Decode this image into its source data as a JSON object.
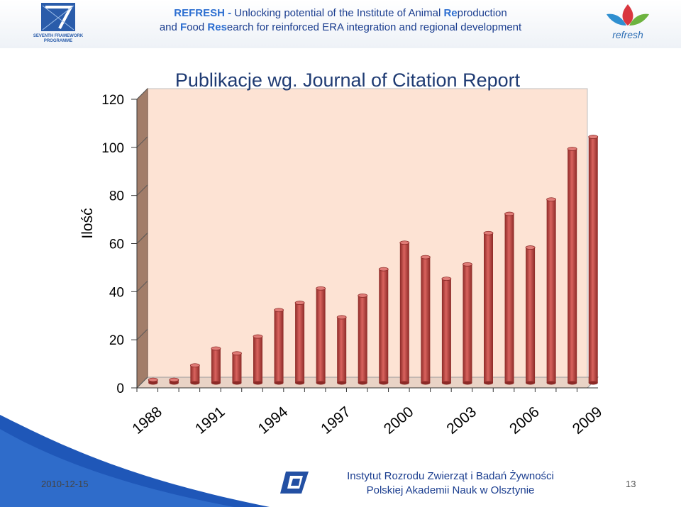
{
  "header": {
    "line1_a": "REFRESH - ",
    "line1_b": "Unlocking potential of the Institute of Animal ",
    "line1_c": "Re",
    "line1_d": "production",
    "line2_a": "and ",
    "line2_b": "F",
    "line2_c": "ood ",
    "line2_d": "Res",
    "line2_e": "earch for reinforced ERA integration and regional development",
    "fp7_logo_text1": "SEVENTH FRAMEWORK",
    "fp7_logo_text2": "PROGRAMME",
    "refresh_logo_text": "refresh"
  },
  "footer": {
    "date": "2010-12-15",
    "institute_line1": "Instytut Rozrodu Zwierząt i Badań Żywności",
    "institute_line2": "Polskiej Akademii Nauk w Olsztynie",
    "page_number": "13"
  },
  "colors": {
    "bar": "#c0504d",
    "bar_dark": "#8c2a27",
    "plot_bg": "#fde3d4",
    "side_wall": "#a27d69",
    "title": "#1f3b73"
  },
  "chart_data": {
    "type": "bar",
    "title": "Publikacje wg. Journal of Citation Report",
    "ylabel": "Ilość",
    "xlabel": "",
    "ylim": [
      0,
      120
    ],
    "yticks": [
      0,
      20,
      40,
      60,
      80,
      100,
      120
    ],
    "categories": [
      "1988",
      "1989",
      "1990",
      "1991",
      "1992",
      "1993",
      "1994",
      "1995",
      "1996",
      "1997",
      "1998",
      "1999",
      "2000",
      "2001",
      "2002",
      "2003",
      "2004",
      "2005",
      "2006",
      "2007",
      "2008",
      "2009"
    ],
    "xtick_labels": [
      "1988",
      "1991",
      "1994",
      "1997",
      "2000",
      "2003",
      "2006",
      "2009"
    ],
    "values": [
      1,
      1,
      7,
      14,
      12,
      19,
      30,
      33,
      39,
      27,
      36,
      47,
      58,
      52,
      43,
      49,
      62,
      70,
      56,
      76,
      97,
      102
    ],
    "grid": false,
    "legend": "none"
  }
}
